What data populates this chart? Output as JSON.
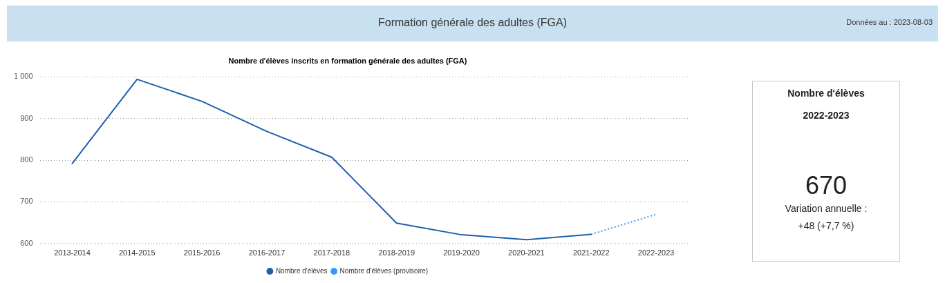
{
  "chart_data": [
    {
      "type": "line",
      "title": "Formation générale des adultes (FGA)",
      "subtitle": "Nombre d'élèves inscrits en formation générale des adultes (FGA)",
      "annotations": [
        "Données au : 2023-08-03"
      ],
      "categories": [
        "2013-2014",
        "2014-2015",
        "2015-2016",
        "2016-2017",
        "2017-2018",
        "2018-2019",
        "2019-2020",
        "2020-2021",
        "2021-2022",
        "2022-2023"
      ],
      "series": [
        {
          "name": "Nombre d'élèves",
          "color": "#1c5fad",
          "line_style": "solid",
          "values": [
            792,
            994,
            941,
            869,
            807,
            649,
            621,
            609,
            622,
            null
          ]
        },
        {
          "name": "Nombre d'élèves (provisoire)",
          "color": "#3399ff",
          "line_style": "dotted",
          "values": [
            null,
            null,
            null,
            null,
            null,
            null,
            null,
            null,
            622,
            670
          ]
        }
      ],
      "ylim": [
        600,
        1000
      ],
      "yticks": [
        600,
        700,
        800,
        900,
        {
          "value": 1000,
          "label": "1 000"
        }
      ],
      "grid": "y",
      "legend": "bottom",
      "marker": "none"
    },
    {
      "type": "other",
      "title": "Nombre d'élèves",
      "subtitle": "2022-2023",
      "annotations": [
        "670",
        "Variation annuelle :",
        "+48 (+7,7 %)"
      ]
    }
  ]
}
